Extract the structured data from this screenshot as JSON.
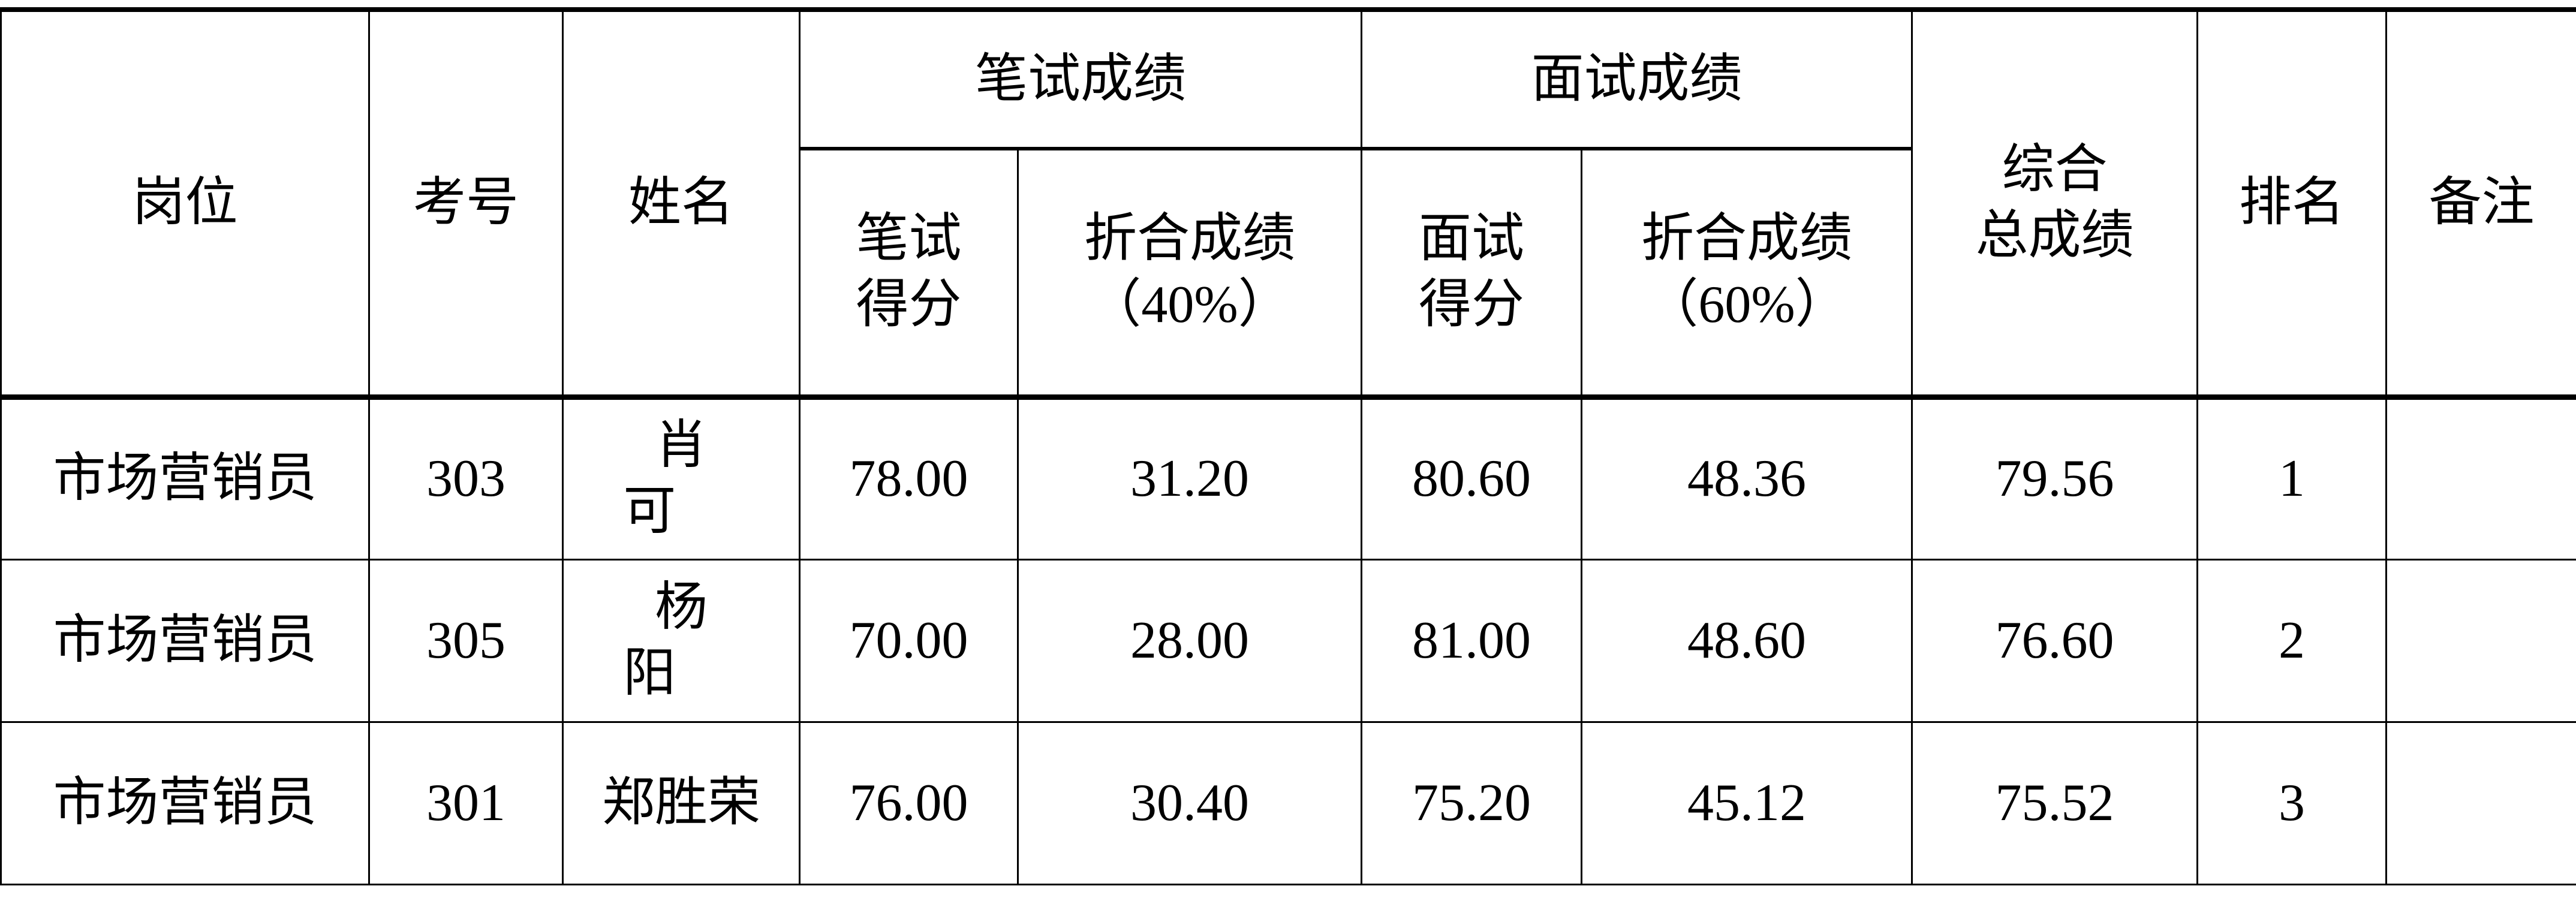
{
  "headers": {
    "position": "岗位",
    "exam_no": "考号",
    "name": "姓名",
    "written_group": "笔试成绩",
    "interview_group": "面试成绩",
    "written_score": [
      "笔试",
      "得分"
    ],
    "written_weighted": [
      "折合成绩",
      "（40%）"
    ],
    "interview_score": [
      "面试",
      "得分"
    ],
    "interview_weighted": [
      "折合成绩",
      "（60%）"
    ],
    "total": [
      "综合",
      "总成绩"
    ],
    "rank": "排名",
    "remark": "备注"
  },
  "rows": [
    {
      "position": "市场营销员",
      "exam_no": "303",
      "name": "肖可",
      "written_score": "78.00",
      "written_weighted": "31.20",
      "interview_score": "80.60",
      "interview_weighted": "48.36",
      "total": "79.56",
      "rank": "1",
      "remark": ""
    },
    {
      "position": "市场营销员",
      "exam_no": "305",
      "name": "杨阳",
      "written_score": "70.00",
      "written_weighted": "28.00",
      "interview_score": "81.00",
      "interview_weighted": "48.60",
      "total": "76.60",
      "rank": "2",
      "remark": ""
    },
    {
      "position": "市场营销员",
      "exam_no": "301",
      "name": "郑胜荣",
      "written_score": "76.00",
      "written_weighted": "30.40",
      "interview_score": "75.20",
      "interview_weighted": "45.12",
      "total": "75.52",
      "rank": "3",
      "remark": ""
    }
  ]
}
